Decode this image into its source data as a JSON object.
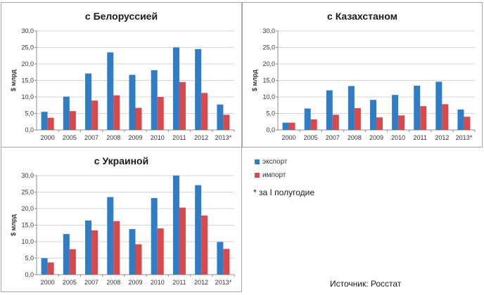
{
  "chart_data": [
    {
      "type": "bar",
      "title": "с Белоруссией",
      "ylabel": "$ млрд",
      "ylim": [
        0,
        30
      ],
      "yticks": [
        "0,0",
        "5,0",
        "10,0",
        "15,0",
        "20,0",
        "25,0",
        "30,0"
      ],
      "categories": [
        "2000",
        "2005",
        "2007",
        "2008",
        "2009",
        "2010",
        "2011",
        "2012",
        "2013*"
      ],
      "series": [
        {
          "name": "экспорт",
          "values": [
            5.5,
            10.1,
            17.1,
            23.5,
            16.7,
            18.1,
            25.0,
            24.5,
            7.7
          ]
        },
        {
          "name": "импорт",
          "values": [
            3.7,
            5.7,
            8.9,
            10.5,
            6.7,
            10.0,
            14.5,
            11.2,
            4.6
          ]
        }
      ]
    },
    {
      "type": "bar",
      "title": "с Казахстаном",
      "ylabel": "$ млрд",
      "ylim": [
        0,
        30
      ],
      "yticks": [
        "0,0",
        "5,0",
        "10,0",
        "15,0",
        "20,0",
        "25,0",
        "30,0"
      ],
      "categories": [
        "2000",
        "2005",
        "2007",
        "2008",
        "2009",
        "2010",
        "2011",
        "2012",
        "2013*"
      ],
      "series": [
        {
          "name": "экспорт",
          "values": [
            2.2,
            6.5,
            12.0,
            13.3,
            9.1,
            10.6,
            13.4,
            14.6,
            6.2
          ]
        },
        {
          "name": "импорт",
          "values": [
            2.2,
            3.2,
            4.6,
            6.6,
            3.8,
            4.4,
            7.2,
            7.8,
            4.0
          ]
        }
      ]
    },
    {
      "type": "bar",
      "title": "с Украиной",
      "ylabel": "$ млрд",
      "ylim": [
        0,
        30
      ],
      "yticks": [
        "0,0",
        "5,0",
        "10,0",
        "15,0",
        "20,0",
        "25,0",
        "30,0"
      ],
      "categories": [
        "2000",
        "2005",
        "2007",
        "2008",
        "2009",
        "2010",
        "2011",
        "2012",
        "2013*"
      ],
      "series": [
        {
          "name": "экспорт",
          "values": [
            5.0,
            12.3,
            16.4,
            23.5,
            13.8,
            23.2,
            30.0,
            27.1,
            9.9
          ]
        },
        {
          "name": "импорт",
          "values": [
            3.7,
            7.7,
            13.4,
            16.2,
            9.2,
            14.0,
            20.3,
            17.9,
            7.8
          ]
        }
      ]
    }
  ],
  "colors": {
    "export": "#2e7dc6",
    "import": "#d9494b",
    "grid": "#d6d6d6",
    "axis": "#8c8c8c"
  },
  "legend": {
    "export_label": "экспорт",
    "import_label": "импорт"
  },
  "footnote": "* за I полугодие",
  "source": "Источник: Росстат"
}
